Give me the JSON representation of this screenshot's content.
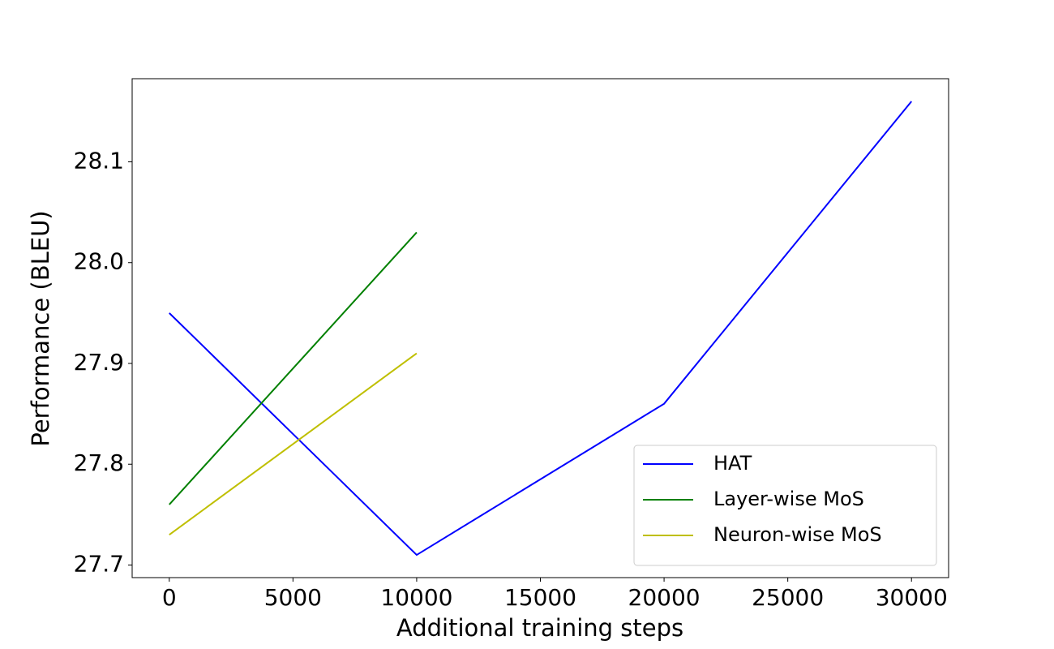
{
  "chart_data": {
    "type": "line",
    "x_label": "Additional training steps",
    "y_label": "Performance (BLEU)",
    "series": [
      {
        "name": "HAT",
        "color": "#0000ff",
        "x": [
          0,
          10000,
          20000,
          30000
        ],
        "values": [
          27.95,
          27.71,
          27.86,
          28.16
        ]
      },
      {
        "name": "Layer-wise MoS",
        "color": "#008000",
        "x": [
          0,
          10000
        ],
        "values": [
          27.76,
          28.03
        ]
      },
      {
        "name": "Neuron-wise MoS",
        "color": "#bfbf00",
        "x": [
          0,
          10000
        ],
        "values": [
          27.73,
          27.91
        ]
      }
    ],
    "xlim": [
      -1500,
      31500
    ],
    "ylim": [
      27.6875,
      28.1825
    ],
    "xticks": [
      0,
      5000,
      10000,
      15000,
      20000,
      25000,
      30000
    ],
    "yticks": [
      27.7,
      27.8,
      27.9,
      {
        "value": 28,
        "label": "28.0"
      },
      28.1
    ],
    "grid": false,
    "legend": "lower right"
  }
}
